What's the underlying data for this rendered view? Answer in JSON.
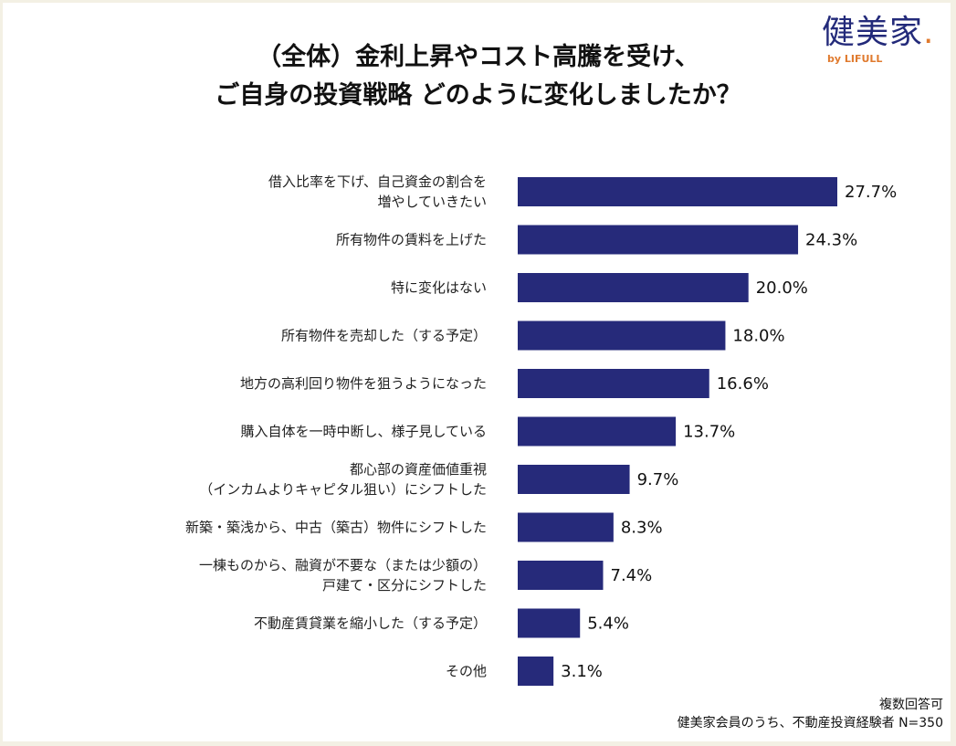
{
  "logo": {
    "text": "健美家",
    "sub": "by LIFULL"
  },
  "chart_data": {
    "type": "bar",
    "orientation": "horizontal",
    "title": [
      "（全体）金利上昇やコスト高騰を受け、",
      "ご自身の投資戦略 どのように変化しましたか？"
    ],
    "categories": [
      [
        "借入比率を下げ、自己資金の割合を",
        "増やしていきたい"
      ],
      [
        "所有物件の賃料を上げた"
      ],
      [
        "特に変化はない"
      ],
      [
        "所有物件を売却した（する予定）"
      ],
      [
        "地方の高利回り物件を狙うようになった"
      ],
      [
        "購入自体を一時中断し、様子見している"
      ],
      [
        "都心部の資産価値重視",
        "（インカムよりキャピタル狙い）にシフトした"
      ],
      [
        "新築・築浅から、中古（築古）物件にシフトした"
      ],
      [
        "一棟ものから、融資が不要な（または少額の）",
        "戸建て・区分にシフトした"
      ],
      [
        "不動産賃貸業を縮小した（する予定）"
      ],
      [
        "その他"
      ]
    ],
    "values": [
      27.7,
      24.3,
      20.0,
      18.0,
      16.6,
      13.7,
      9.7,
      8.3,
      7.4,
      5.4,
      3.1
    ],
    "value_labels": [
      "27.7%",
      "24.3%",
      "20.0%",
      "18.0%",
      "16.6%",
      "13.7%",
      "9.7%",
      "8.3%",
      "7.4%",
      "5.4%",
      "3.1%"
    ],
    "unit": "%",
    "bar_color": "#262a7a",
    "grid": false,
    "legend": "none"
  },
  "notes": [
    "複数回答可",
    "健美家会員のうち、不動産投資経験者 N=350"
  ]
}
